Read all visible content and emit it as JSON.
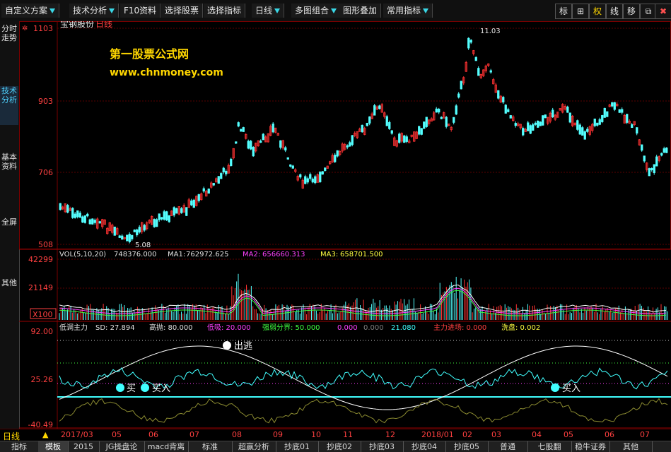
{
  "toolbar": {
    "buttons": [
      {
        "label": "自定义方案",
        "dropdown": true
      },
      {
        "label": "技术分析",
        "dropdown": true
      },
      {
        "label": "F10资料",
        "dropdown": false
      },
      {
        "label": "选择股票",
        "dropdown": false
      },
      {
        "label": "选择指标",
        "dropdown": false
      },
      {
        "label": "日线",
        "dropdown": true
      },
      {
        "label": "多图组合",
        "dropdown": true
      },
      {
        "label": "图形叠加",
        "dropdown": false
      },
      {
        "label": "常用指标",
        "dropdown": true
      }
    ],
    "right_buttons": [
      "标",
      "⊞",
      "权",
      "线",
      "移",
      "⧉",
      "✖"
    ]
  },
  "sidebar": {
    "items": [
      "分时走势",
      "技术分析",
      "基本资料",
      "全屏",
      "其他"
    ]
  },
  "price_panel": {
    "stock_name": "宝钢股份",
    "period": "日线",
    "watermark_title": "第一股票公式网",
    "watermark_url": "www.chnmoney.com",
    "y_labels": [
      "1103",
      "903",
      "706",
      "508"
    ],
    "high_label": "11.03",
    "low_label": "5.08"
  },
  "vol_panel": {
    "header": "VOL(5,10,20)",
    "vol": "748376.000",
    "ma1_label": "MA1:",
    "ma1": "762972.625",
    "ma2_label": "MA2:",
    "ma2": "656660.313",
    "ma3_label": "MA3:",
    "ma3": "658701.500",
    "y_labels": [
      "42299",
      "21149"
    ],
    "unit": "X100"
  },
  "indicator_panel": {
    "name": "低调主力",
    "sd": "SD: 27.894",
    "gaopao": "高抛: 80.000",
    "dixi": "低吸: 20.000",
    "qrfj": "强弱分界: 50.000",
    "v1": "0.000",
    "v2": "0.000",
    "v3": "21.080",
    "zljc": "主力进场: 0.000",
    "xipan": "洗盘: 0.002",
    "y_labels": [
      "92.00",
      "25.26",
      "-40.49"
    ],
    "marker_buy": "买",
    "marker_buyin": "买入",
    "marker_escape": "出逃",
    "marker_buyin2": "买入"
  },
  "statusbar": {
    "period": "日线",
    "dates": [
      "2017/03",
      "05",
      "06",
      "07",
      "08",
      "09",
      "10",
      "11",
      "12",
      "2018/01",
      "02",
      "03",
      "04",
      "05",
      "06",
      "07"
    ]
  },
  "tabs": [
    "指标",
    "模板",
    "2015",
    "JG操盘论",
    "macd背离",
    "标准",
    "超赢分析",
    "抄底01",
    "抄底02",
    "抄底03",
    "抄底04",
    "抄底05",
    "普通",
    "七股翻",
    "稳牛证券",
    "其他"
  ],
  "colors": {
    "up": "#ff3232",
    "down": "#54ffff",
    "accent": "#3ad7e6"
  }
}
